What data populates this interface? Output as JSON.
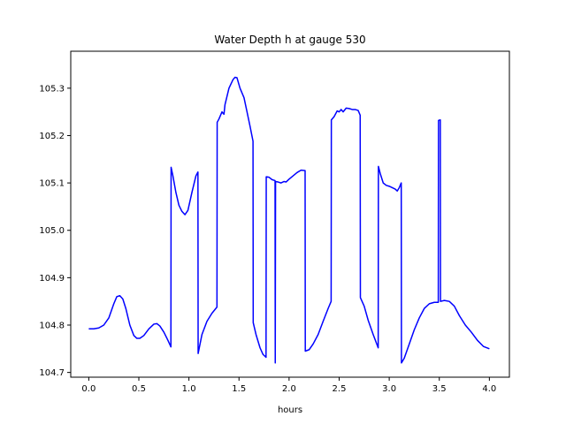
{
  "chart_data": {
    "type": "line",
    "title": "Water Depth h at gauge 530",
    "xlabel": "hours",
    "ylabel": "",
    "xlim": [
      -0.18,
      4.2
    ],
    "ylim": [
      104.69,
      105.378
    ],
    "xticks": [
      0.0,
      0.5,
      1.0,
      1.5,
      2.0,
      2.5,
      3.0,
      3.5,
      4.0
    ],
    "xtick_labels": [
      "0.0",
      "0.5",
      "1.0",
      "1.5",
      "2.0",
      "2.5",
      "3.0",
      "3.5",
      "4.0"
    ],
    "yticks": [
      104.7,
      104.8,
      104.9,
      105.0,
      105.1,
      105.2,
      105.3
    ],
    "ytick_labels": [
      "104.7",
      "104.8",
      "104.9",
      "105.0",
      "105.1",
      "105.2",
      "105.3"
    ],
    "grid": false,
    "legend": "none",
    "series": [
      {
        "color": "#0000ff",
        "points": [
          [
            0.0,
            104.792
          ],
          [
            0.05,
            104.792
          ],
          [
            0.1,
            104.794
          ],
          [
            0.15,
            104.8
          ],
          [
            0.2,
            104.815
          ],
          [
            0.25,
            104.845
          ],
          [
            0.28,
            104.86
          ],
          [
            0.31,
            104.862
          ],
          [
            0.34,
            104.855
          ],
          [
            0.37,
            104.835
          ],
          [
            0.41,
            104.8
          ],
          [
            0.45,
            104.778
          ],
          [
            0.48,
            104.772
          ],
          [
            0.51,
            104.772
          ],
          [
            0.55,
            104.778
          ],
          [
            0.6,
            104.792
          ],
          [
            0.65,
            104.802
          ],
          [
            0.68,
            104.803
          ],
          [
            0.71,
            104.798
          ],
          [
            0.75,
            104.785
          ],
          [
            0.79,
            104.768
          ],
          [
            0.82,
            104.754
          ],
          [
            0.822,
            105.133
          ],
          [
            0.84,
            105.115
          ],
          [
            0.87,
            105.08
          ],
          [
            0.9,
            105.053
          ],
          [
            0.93,
            105.04
          ],
          [
            0.96,
            105.033
          ],
          [
            0.99,
            105.042
          ],
          [
            1.03,
            105.08
          ],
          [
            1.07,
            105.115
          ],
          [
            1.09,
            105.123
          ],
          [
            1.092,
            104.74
          ],
          [
            1.13,
            104.78
          ],
          [
            1.18,
            104.808
          ],
          [
            1.23,
            104.825
          ],
          [
            1.28,
            104.838
          ],
          [
            1.282,
            105.228
          ],
          [
            1.3,
            105.235
          ],
          [
            1.33,
            105.25
          ],
          [
            1.35,
            105.245
          ],
          [
            1.36,
            105.265
          ],
          [
            1.4,
            105.3
          ],
          [
            1.44,
            105.318
          ],
          [
            1.46,
            105.323
          ],
          [
            1.48,
            105.322
          ],
          [
            1.51,
            105.3
          ],
          [
            1.55,
            105.28
          ],
          [
            1.58,
            105.25
          ],
          [
            1.61,
            105.22
          ],
          [
            1.64,
            105.188
          ],
          [
            1.642,
            104.805
          ],
          [
            1.67,
            104.78
          ],
          [
            1.71,
            104.752
          ],
          [
            1.74,
            104.738
          ],
          [
            1.77,
            104.732
          ],
          [
            1.772,
            105.113
          ],
          [
            1.8,
            105.112
          ],
          [
            1.83,
            105.107
          ],
          [
            1.86,
            105.105
          ],
          [
            1.862,
            104.72
          ],
          [
            1.865,
            105.103
          ],
          [
            1.89,
            105.102
          ],
          [
            1.92,
            105.1
          ],
          [
            1.95,
            105.103
          ],
          [
            1.97,
            105.102
          ],
          [
            2.0,
            105.108
          ],
          [
            2.04,
            105.115
          ],
          [
            2.08,
            105.122
          ],
          [
            2.12,
            105.127
          ],
          [
            2.16,
            105.126
          ],
          [
            2.162,
            104.745
          ],
          [
            2.2,
            104.748
          ],
          [
            2.24,
            104.76
          ],
          [
            2.29,
            104.78
          ],
          [
            2.34,
            104.808
          ],
          [
            2.39,
            104.835
          ],
          [
            2.42,
            104.85
          ],
          [
            2.422,
            105.233
          ],
          [
            2.45,
            105.24
          ],
          [
            2.48,
            105.252
          ],
          [
            2.5,
            105.25
          ],
          [
            2.52,
            105.255
          ],
          [
            2.54,
            105.25
          ],
          [
            2.57,
            105.258
          ],
          [
            2.6,
            105.257
          ],
          [
            2.63,
            105.255
          ],
          [
            2.66,
            105.255
          ],
          [
            2.69,
            105.253
          ],
          [
            2.71,
            105.243
          ],
          [
            2.712,
            104.858
          ],
          [
            2.75,
            104.84
          ],
          [
            2.79,
            104.81
          ],
          [
            2.84,
            104.78
          ],
          [
            2.89,
            104.752
          ],
          [
            2.892,
            105.135
          ],
          [
            2.91,
            105.12
          ],
          [
            2.94,
            105.1
          ],
          [
            2.97,
            105.095
          ],
          [
            3.0,
            105.093
          ],
          [
            3.03,
            105.09
          ],
          [
            3.06,
            105.087
          ],
          [
            3.08,
            105.083
          ],
          [
            3.1,
            105.09
          ],
          [
            3.12,
            105.1
          ],
          [
            3.122,
            104.72
          ],
          [
            3.15,
            104.73
          ],
          [
            3.2,
            104.76
          ],
          [
            3.25,
            104.79
          ],
          [
            3.3,
            104.815
          ],
          [
            3.35,
            104.835
          ],
          [
            3.4,
            104.845
          ],
          [
            3.45,
            104.848
          ],
          [
            3.49,
            104.848
          ],
          [
            3.492,
            105.232
          ],
          [
            3.51,
            105.233
          ],
          [
            3.512,
            104.85
          ],
          [
            3.55,
            104.852
          ],
          [
            3.6,
            104.85
          ],
          [
            3.65,
            104.84
          ],
          [
            3.7,
            104.82
          ],
          [
            3.76,
            104.8
          ],
          [
            3.82,
            104.785
          ],
          [
            3.88,
            104.768
          ],
          [
            3.94,
            104.755
          ],
          [
            4.0,
            104.75
          ]
        ]
      }
    ]
  }
}
